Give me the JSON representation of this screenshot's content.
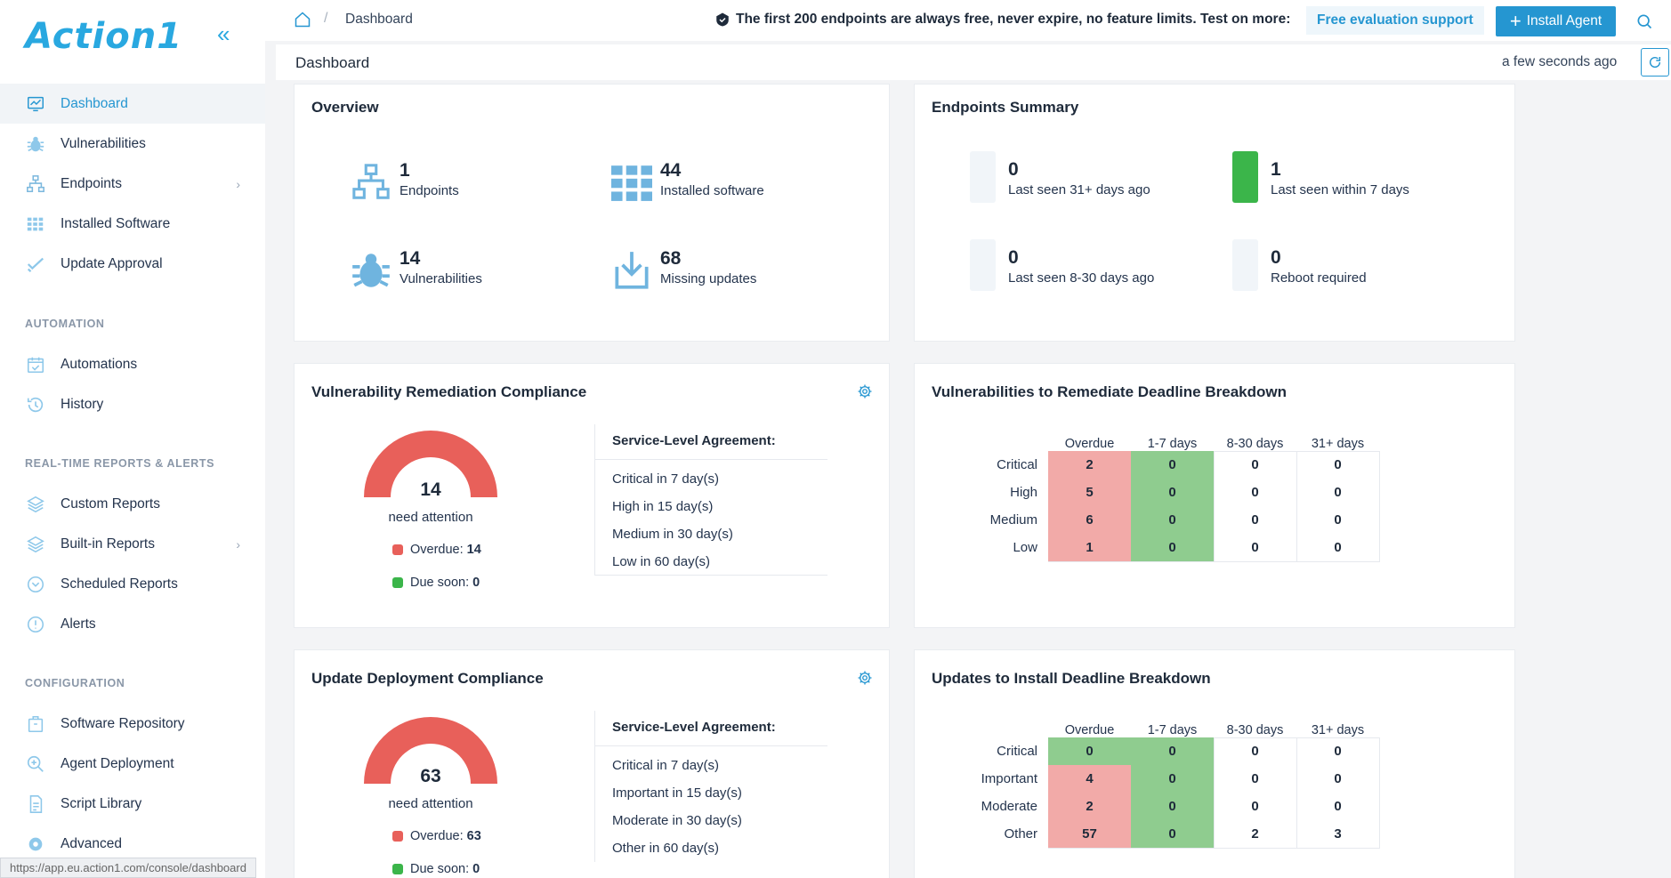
{
  "app": {
    "logo": "Action1",
    "status_url": "https://app.eu.action1.com/console/dashboard"
  },
  "sidebar": {
    "main": [
      {
        "label": "Dashboard",
        "icon": "dashboard-icon",
        "active": true
      },
      {
        "label": "Vulnerabilities",
        "icon": "bug-icon"
      },
      {
        "label": "Endpoints",
        "icon": "network-icon",
        "chevron": true
      },
      {
        "label": "Installed Software",
        "icon": "grid-icon"
      },
      {
        "label": "Update Approval",
        "icon": "approval-icon"
      }
    ],
    "automation_label": "AUTOMATION",
    "automation": [
      {
        "label": "Automations",
        "icon": "calendar-check-icon"
      },
      {
        "label": "History",
        "icon": "history-icon"
      }
    ],
    "reports_label": "REAL-TIME REPORTS & ALERTS",
    "reports": [
      {
        "label": "Custom Reports",
        "icon": "layers-icon"
      },
      {
        "label": "Built-in Reports",
        "icon": "layers-icon",
        "chevron": true
      },
      {
        "label": "Scheduled Reports",
        "icon": "clock-icon"
      },
      {
        "label": "Alerts",
        "icon": "alert-icon"
      }
    ],
    "config_label": "CONFIGURATION",
    "config": [
      {
        "label": "Software Repository",
        "icon": "package-icon"
      },
      {
        "label": "Agent Deployment",
        "icon": "zoom-icon"
      },
      {
        "label": "Script Library",
        "icon": "script-icon"
      },
      {
        "label": "Advanced",
        "icon": "gear-icon"
      }
    ]
  },
  "topbar": {
    "breadcrumb": "Dashboard",
    "promo": "The first 200 endpoints are always free, never expire, no feature limits. Test on more:",
    "eval_label": "Free evaluation support",
    "install_label": "Install Agent"
  },
  "header": {
    "title": "Dashboard",
    "updated": "a few seconds ago"
  },
  "overview": {
    "title": "Overview",
    "stats": [
      {
        "value": "1",
        "label": "Endpoints",
        "icon": "network-icon"
      },
      {
        "value": "44",
        "label": "Installed software",
        "icon": "grid-icon"
      },
      {
        "value": "14",
        "label": "Vulnerabilities",
        "icon": "bug-icon"
      },
      {
        "value": "68",
        "label": "Missing updates",
        "icon": "download-icon"
      }
    ]
  },
  "endpoints_summary": {
    "title": "Endpoints Summary",
    "stats": [
      {
        "value": "0",
        "label": "Last seen 31+ days ago",
        "color": "#f1f5f9"
      },
      {
        "value": "1",
        "label": "Last seen within 7 days",
        "color": "#3bb54a"
      },
      {
        "value": "0",
        "label": "Last seen 8-30 days ago",
        "color": "#f1f5f9"
      },
      {
        "value": "0",
        "label": "Reboot required",
        "color": "#f1f5f9"
      }
    ]
  },
  "vuln_compliance": {
    "title": "Vulnerability Remediation Compliance",
    "gauge_value": "14",
    "gauge_label": "need attention",
    "overdue_label": "Overdue:",
    "overdue_value": "14",
    "due_label": "Due soon:",
    "due_value": "0",
    "sla_title": "Service-Level Agreement:",
    "sla": [
      "Critical in 7 day(s)",
      "High in 15 day(s)",
      "Medium in 30 day(s)",
      "Low in 60 day(s)"
    ]
  },
  "vuln_breakdown": {
    "title": "Vulnerabilities to Remediate Deadline Breakdown",
    "columns": [
      "Overdue",
      "1-7 days",
      "8-30 days",
      "31+ days"
    ],
    "rows": [
      {
        "label": "Critical",
        "values": [
          "2",
          "0",
          "0",
          "0"
        ],
        "colors": [
          "red",
          "green",
          "",
          ""
        ]
      },
      {
        "label": "High",
        "values": [
          "5",
          "0",
          "0",
          "0"
        ],
        "colors": [
          "red",
          "green",
          "",
          ""
        ]
      },
      {
        "label": "Medium",
        "values": [
          "6",
          "0",
          "0",
          "0"
        ],
        "colors": [
          "red",
          "green",
          "",
          ""
        ]
      },
      {
        "label": "Low",
        "values": [
          "1",
          "0",
          "0",
          "0"
        ],
        "colors": [
          "red",
          "green",
          "",
          ""
        ]
      }
    ]
  },
  "update_compliance": {
    "title": "Update Deployment Compliance",
    "gauge_value": "63",
    "gauge_label": "need attention",
    "overdue_label": "Overdue:",
    "overdue_value": "63",
    "due_label": "Due soon:",
    "due_value": "0",
    "sla_title": "Service-Level Agreement:",
    "sla": [
      "Critical in 7 day(s)",
      "Important in 15 day(s)",
      "Moderate in 30 day(s)",
      "Other in 60 day(s)"
    ]
  },
  "update_breakdown": {
    "title": "Updates to Install Deadline Breakdown",
    "columns": [
      "Overdue",
      "1-7 days",
      "8-30 days",
      "31+ days"
    ],
    "rows": [
      {
        "label": "Critical",
        "values": [
          "0",
          "0",
          "0",
          "0"
        ],
        "colors": [
          "green",
          "green",
          "",
          ""
        ]
      },
      {
        "label": "Important",
        "values": [
          "4",
          "0",
          "0",
          "0"
        ],
        "colors": [
          "red",
          "green",
          "",
          ""
        ]
      },
      {
        "label": "Moderate",
        "values": [
          "2",
          "0",
          "0",
          "0"
        ],
        "colors": [
          "red",
          "green",
          "",
          ""
        ]
      },
      {
        "label": "Other",
        "values": [
          "57",
          "0",
          "2",
          "3"
        ],
        "colors": [
          "red",
          "green",
          "",
          ""
        ]
      }
    ]
  },
  "colors": {
    "accent": "#2596d1",
    "overdue": "#e8605a",
    "due_soon": "#3bb54a",
    "cell_red": "#f2aaa8",
    "cell_green": "#8fcc8f"
  }
}
